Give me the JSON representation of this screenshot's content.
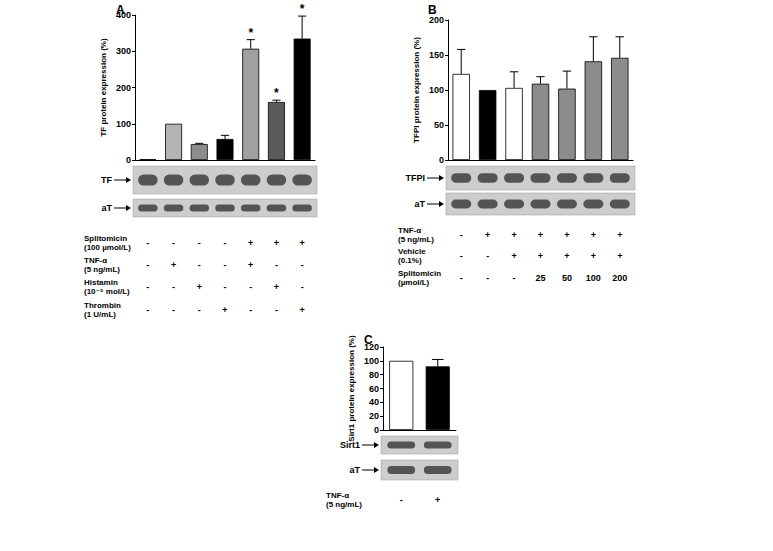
{
  "chart_data": [
    {
      "panel": "A",
      "type": "bar",
      "y_label": "TF protein expression (%)",
      "categories": [
        null,
        null,
        null,
        null,
        null,
        null,
        null
      ],
      "values": [
        2,
        100,
        44,
        58,
        307,
        160,
        335
      ],
      "errors": [
        0,
        0,
        2,
        10,
        25,
        5,
        62
      ],
      "colors": [
        "#ffffff",
        "#b4b4b4",
        "#8c8c8c",
        "#000000",
        "#a0a0a0",
        "#5a5a5a",
        "#000000"
      ],
      "ylim": [
        0,
        400
      ],
      "yticks": [
        0,
        100,
        200,
        300,
        400
      ],
      "grid": false,
      "tick_labels": "y",
      "annotations": [
        {
          "index": 4,
          "text": "*"
        },
        {
          "index": 5,
          "text": "*"
        },
        {
          "index": 6,
          "text": "*"
        }
      ],
      "blots": [
        "TF",
        "aT"
      ],
      "treatments": [
        {
          "label": "Splitomicin\n(100 µmol/L)",
          "marks": [
            "-",
            "-",
            "-",
            "-",
            "+",
            "+",
            "+"
          ]
        },
        {
          "label": "TNF-α\n(5 ng/mL)",
          "marks": [
            "-",
            "+",
            "-",
            "-",
            "+",
            "-",
            "-"
          ]
        },
        {
          "label": "Histamin\n(10⁻⁵ mol/L)",
          "marks": [
            "-",
            "-",
            "+",
            "-",
            "-",
            "+",
            "-"
          ]
        },
        {
          "label": "Thrombin\n(1 U/mL)",
          "marks": [
            "-",
            "-",
            "-",
            "+",
            "-",
            "-",
            "+"
          ]
        }
      ]
    },
    {
      "panel": "B",
      "type": "bar",
      "y_label": "TFPI protein expression (%)",
      "categories": [
        null,
        null,
        null,
        null,
        null,
        null,
        null
      ],
      "values": [
        123,
        100,
        103,
        109,
        102,
        141,
        146
      ],
      "errors": [
        35,
        0,
        23,
        10,
        25,
        35,
        30
      ],
      "colors": [
        "#ffffff",
        "#000000",
        "#ffffff",
        "#8c8c8c",
        "#8c8c8c",
        "#8c8c8c",
        "#8c8c8c"
      ],
      "ylim": [
        0,
        200
      ],
      "yticks": [
        0,
        50,
        100,
        150,
        200
      ],
      "grid": false,
      "tick_labels": "y",
      "annotations": [],
      "blots": [
        "TFPI",
        "aT"
      ],
      "treatments": [
        {
          "label": "TNF-α\n(5 ng/mL)",
          "marks": [
            "-",
            "+",
            "+",
            "+",
            "+",
            "+",
            "+"
          ]
        },
        {
          "label": "Vehicle\n(0.1%)",
          "marks": [
            "-",
            "-",
            "+",
            "+",
            "+",
            "+",
            "+"
          ]
        },
        {
          "label": "Splitomicin\n(µmol/L)",
          "marks": [
            "-",
            "-",
            "-",
            "25",
            "50",
            "100",
            "200"
          ]
        }
      ]
    },
    {
      "panel": "C",
      "type": "bar",
      "y_label": "Sirt1 protein expression (%)",
      "categories": [
        null,
        null
      ],
      "values": [
        100,
        92
      ],
      "errors": [
        0,
        10
      ],
      "colors": [
        "#ffffff",
        "#000000"
      ],
      "ylim": [
        0,
        120
      ],
      "yticks": [
        0,
        20,
        40,
        60,
        80,
        100,
        120
      ],
      "grid": false,
      "tick_labels": "y",
      "annotations": [],
      "blots": [
        "Sirt1",
        "aT"
      ],
      "treatments": [
        {
          "label": "TNF-α\n(5 ng/mL)",
          "marks": [
            "-",
            "+"
          ]
        }
      ]
    }
  ]
}
